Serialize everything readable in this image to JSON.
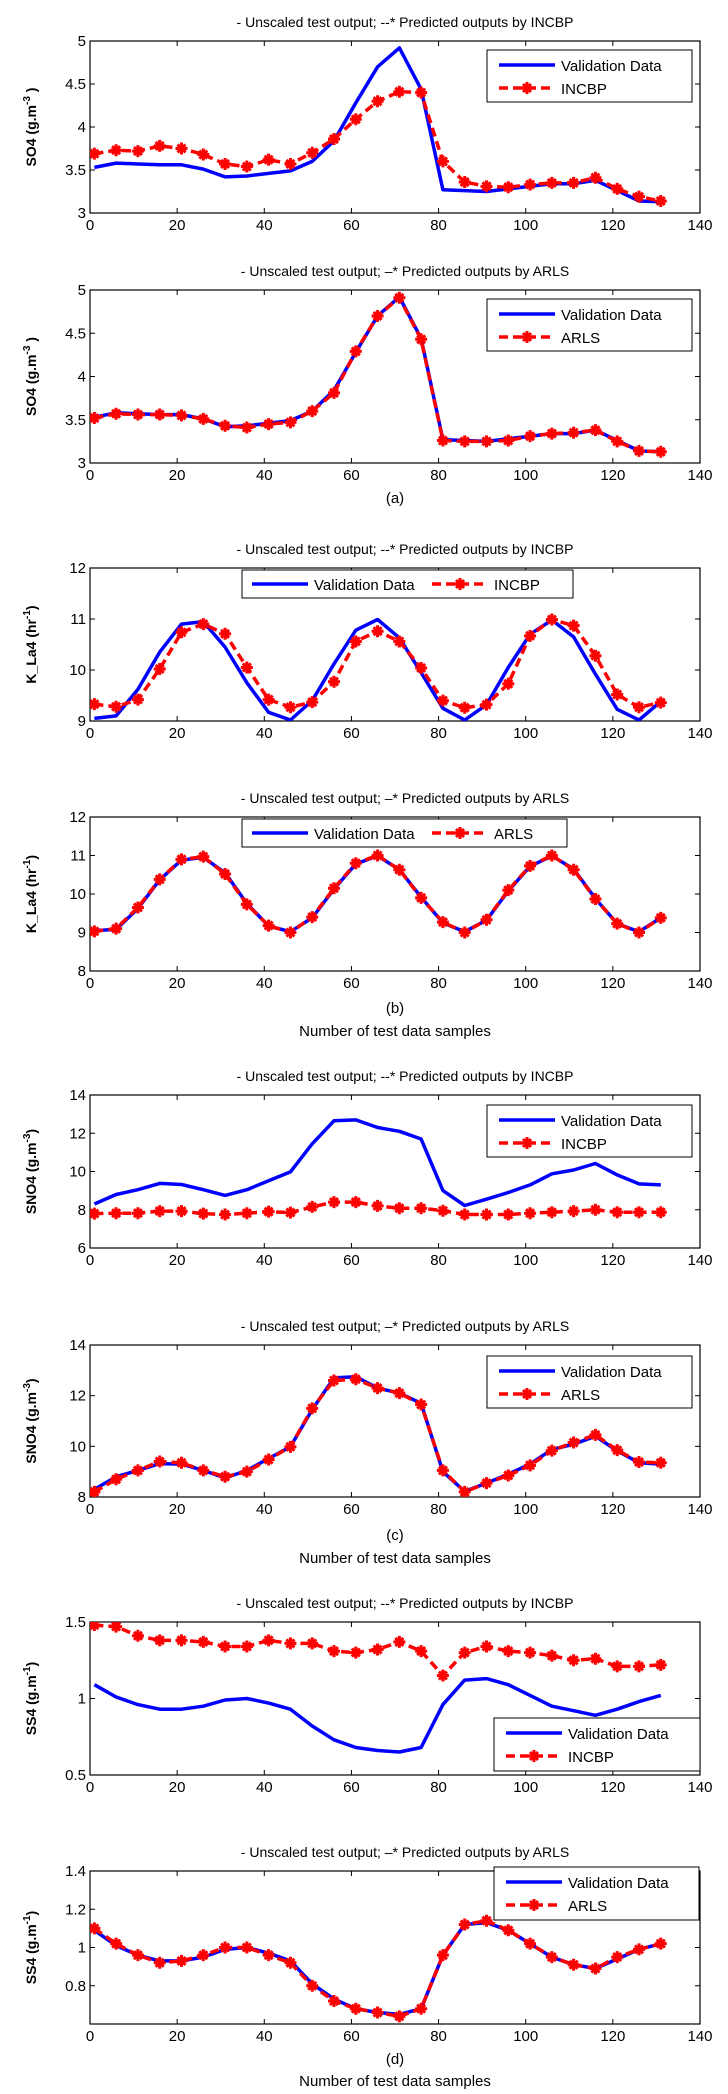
{
  "figure": {
    "panel_labels": [
      "(a)",
      "(b)",
      "(c)",
      "(d)"
    ],
    "xlabel": "Number of test data samples"
  },
  "chart_data": [
    {
      "type": "line",
      "panel": "(a)",
      "title": "- Unscaled test output; --* Predicted outputs by INCBP",
      "ylabel": "SO4 (g.m^-3 )",
      "xlabel": "",
      "xlim": [
        0,
        140
      ],
      "ylim": [
        3,
        5
      ],
      "xticks": [
        0,
        20,
        40,
        60,
        80,
        100,
        120,
        140
      ],
      "yticks": [
        3,
        3.5,
        4,
        4.5,
        5
      ],
      "ytick_labels": [
        "3",
        "3.5",
        "4",
        "4.5",
        "5"
      ],
      "legend": "top-right",
      "legend_layout": "vertical",
      "x": [
        1,
        6,
        11,
        16,
        21,
        26,
        31,
        36,
        41,
        46,
        51,
        56,
        61,
        66,
        71,
        76,
        81,
        86,
        91,
        96,
        101,
        106,
        111,
        116,
        121,
        126,
        131
      ],
      "series": [
        {
          "name": "Validation Data",
          "style": "solid",
          "color": "#0000ff",
          "values": [
            3.53,
            3.58,
            3.57,
            3.56,
            3.56,
            3.51,
            3.42,
            3.43,
            3.46,
            3.49,
            3.6,
            3.84,
            4.28,
            4.7,
            4.92,
            4.44,
            3.27,
            3.26,
            3.25,
            3.28,
            3.31,
            3.34,
            3.34,
            3.38,
            3.26,
            3.14,
            3.13
          ]
        },
        {
          "name": "INCBP",
          "style": "dashed-star",
          "color": "#ff0000",
          "values": [
            3.69,
            3.73,
            3.72,
            3.78,
            3.75,
            3.68,
            3.57,
            3.54,
            3.62,
            3.57,
            3.7,
            3.86,
            4.09,
            4.3,
            4.41,
            4.4,
            3.6,
            3.36,
            3.31,
            3.3,
            3.33,
            3.35,
            3.35,
            3.41,
            3.28,
            3.19,
            3.14
          ]
        }
      ]
    },
    {
      "type": "line",
      "panel": "(a)",
      "title": "- Unscaled test output; –* Predicted outputs by ARLS",
      "ylabel": "SO4 (g.m^-3 )",
      "xlabel": "",
      "xlim": [
        0,
        140
      ],
      "ylim": [
        3,
        5
      ],
      "xticks": [
        0,
        20,
        40,
        60,
        80,
        100,
        120,
        140
      ],
      "yticks": [
        3,
        3.5,
        4,
        4.5,
        5
      ],
      "ytick_labels": [
        "3",
        "3.5",
        "4",
        "4.5",
        "5"
      ],
      "legend": "top-right",
      "legend_layout": "vertical",
      "x": [
        1,
        6,
        11,
        16,
        21,
        26,
        31,
        36,
        41,
        46,
        51,
        56,
        61,
        66,
        71,
        76,
        81,
        86,
        91,
        96,
        101,
        106,
        111,
        116,
        121,
        126,
        131
      ],
      "series": [
        {
          "name": "Validation Data",
          "style": "solid",
          "color": "#0000ff",
          "values": [
            3.53,
            3.58,
            3.57,
            3.56,
            3.56,
            3.51,
            3.42,
            3.43,
            3.46,
            3.49,
            3.6,
            3.84,
            4.28,
            4.7,
            4.92,
            4.44,
            3.27,
            3.26,
            3.25,
            3.28,
            3.31,
            3.34,
            3.34,
            3.38,
            3.26,
            3.14,
            3.13
          ]
        },
        {
          "name": "ARLS",
          "style": "dashed-star",
          "color": "#ff0000",
          "values": [
            3.52,
            3.57,
            3.56,
            3.56,
            3.55,
            3.51,
            3.43,
            3.41,
            3.45,
            3.47,
            3.6,
            3.81,
            4.29,
            4.7,
            4.91,
            4.43,
            3.26,
            3.25,
            3.25,
            3.26,
            3.31,
            3.34,
            3.35,
            3.38,
            3.25,
            3.14,
            3.13
          ]
        }
      ]
    },
    {
      "type": "line",
      "panel": "(b)",
      "title": "- Unscaled test output; --* Predicted outputs by INCBP",
      "ylabel": "K_La4 (hr^-1)",
      "xlabel": "",
      "xlim": [
        0,
        140
      ],
      "ylim": [
        9,
        12
      ],
      "xticks": [
        0,
        20,
        40,
        60,
        80,
        100,
        120,
        140
      ],
      "yticks": [
        9,
        10,
        11,
        12
      ],
      "ytick_labels": [
        "9",
        "10",
        "11",
        "12"
      ],
      "legend": "top-center",
      "legend_layout": "horizontal",
      "x": [
        1,
        6,
        11,
        16,
        21,
        26,
        31,
        36,
        41,
        46,
        51,
        56,
        61,
        66,
        71,
        76,
        81,
        86,
        91,
        96,
        101,
        106,
        111,
        116,
        121,
        126,
        131
      ],
      "series": [
        {
          "name": "Validation Data",
          "style": "solid",
          "color": "#0000ff",
          "values": [
            9.05,
            9.1,
            9.62,
            10.35,
            10.9,
            10.95,
            10.45,
            9.75,
            9.17,
            9.02,
            9.4,
            10.12,
            10.78,
            10.99,
            10.63,
            9.95,
            9.25,
            9.02,
            9.32,
            10.05,
            10.7,
            10.98,
            10.65,
            9.92,
            9.23,
            9.02,
            9.38
          ]
        },
        {
          "name": "INCBP",
          "style": "dashed-star",
          "color": "#ff0000",
          "values": [
            9.33,
            9.28,
            9.42,
            10.02,
            10.74,
            10.9,
            10.71,
            10.05,
            9.42,
            9.27,
            9.37,
            9.77,
            10.56,
            10.76,
            10.56,
            10.04,
            9.4,
            9.26,
            9.32,
            9.73,
            10.67,
            10.99,
            10.87,
            10.28,
            9.52,
            9.27,
            9.36
          ]
        }
      ]
    },
    {
      "type": "line",
      "panel": "(b)",
      "title": "- Unscaled test output; –* Predicted outputs by ARLS",
      "ylabel": "K_La4 (hr^-1)",
      "xlabel": "Number of test data samples",
      "xlim": [
        0,
        140
      ],
      "ylim": [
        8,
        12
      ],
      "xticks": [
        0,
        20,
        40,
        60,
        80,
        100,
        120,
        140
      ],
      "yticks": [
        8,
        9,
        10,
        11,
        12
      ],
      "ytick_labels": [
        "8",
        "9",
        "10",
        "11",
        "12"
      ],
      "legend": "top-center",
      "legend_layout": "horizontal",
      "x": [
        1,
        6,
        11,
        16,
        21,
        26,
        31,
        36,
        41,
        46,
        51,
        56,
        61,
        66,
        71,
        76,
        81,
        86,
        91,
        96,
        101,
        106,
        111,
        116,
        121,
        126,
        131
      ],
      "series": [
        {
          "name": "Validation Data",
          "style": "solid",
          "color": "#0000ff",
          "values": [
            9.05,
            9.08,
            9.62,
            10.37,
            10.88,
            10.95,
            10.55,
            9.75,
            9.17,
            9.02,
            9.38,
            10.13,
            10.78,
            10.99,
            10.63,
            9.92,
            9.25,
            9.02,
            9.32,
            10.08,
            10.72,
            10.99,
            10.65,
            9.88,
            9.23,
            9.02,
            9.38
          ]
        },
        {
          "name": "ARLS",
          "style": "dashed-star",
          "color": "#ff0000",
          "values": [
            9.03,
            9.1,
            9.65,
            10.38,
            10.9,
            10.97,
            10.52,
            9.73,
            9.18,
            9.0,
            9.4,
            10.15,
            10.8,
            11.0,
            10.63,
            9.9,
            9.27,
            9.0,
            9.33,
            10.1,
            10.73,
            11.0,
            10.63,
            9.87,
            9.23,
            9.0,
            9.38
          ]
        }
      ]
    },
    {
      "type": "line",
      "panel": "(c)",
      "title": "- Unscaled test output; --* Predicted outputs by INCBP",
      "ylabel": "SNO4 (g.m^-3)",
      "xlabel": "",
      "xlim": [
        0,
        140
      ],
      "ylim": [
        6,
        14
      ],
      "xticks": [
        0,
        20,
        40,
        60,
        80,
        100,
        120,
        140
      ],
      "yticks": [
        6,
        8,
        10,
        12,
        14
      ],
      "ytick_labels": [
        "6",
        "8",
        "10",
        "12",
        "14"
      ],
      "legend": "top-right",
      "legend_layout": "vertical",
      "x": [
        1,
        6,
        11,
        16,
        21,
        26,
        31,
        36,
        41,
        46,
        51,
        56,
        61,
        66,
        71,
        76,
        81,
        86,
        91,
        96,
        101,
        106,
        111,
        116,
        121,
        126,
        131
      ],
      "series": [
        {
          "name": "Validation Data",
          "style": "solid",
          "color": "#0000ff",
          "values": [
            8.3,
            8.8,
            9.05,
            9.38,
            9.32,
            9.05,
            8.75,
            9.05,
            9.52,
            9.98,
            11.45,
            12.65,
            12.7,
            12.3,
            12.1,
            11.7,
            9.0,
            8.22,
            8.55,
            8.9,
            9.3,
            9.88,
            10.08,
            10.42,
            9.82,
            9.35,
            9.3
          ]
        },
        {
          "name": "INCBP",
          "style": "dashed-star",
          "color": "#ff0000",
          "values": [
            7.8,
            7.82,
            7.82,
            7.93,
            7.93,
            7.8,
            7.75,
            7.82,
            7.9,
            7.85,
            8.15,
            8.4,
            8.4,
            8.2,
            8.08,
            8.08,
            7.95,
            7.75,
            7.75,
            7.75,
            7.82,
            7.87,
            7.93,
            8.0,
            7.87,
            7.87,
            7.87
          ]
        }
      ]
    },
    {
      "type": "line",
      "panel": "(c)",
      "title": "- Unscaled test output; –* Predicted outputs by ARLS",
      "ylabel": "SNO4 (g.m^-3)",
      "xlabel": "Number of test data samples",
      "xlim": [
        0,
        140
      ],
      "ylim": [
        8,
        14
      ],
      "xticks": [
        0,
        20,
        40,
        60,
        80,
        100,
        120,
        140
      ],
      "yticks": [
        8,
        10,
        12,
        14
      ],
      "ytick_labels": [
        "8",
        "10",
        "12",
        "14"
      ],
      "legend": "top-right",
      "legend_layout": "vertical",
      "x": [
        1,
        6,
        11,
        16,
        21,
        26,
        31,
        36,
        41,
        46,
        51,
        56,
        61,
        66,
        71,
        76,
        81,
        86,
        91,
        96,
        101,
        106,
        111,
        116,
        121,
        126,
        131
      ],
      "series": [
        {
          "name": "Validation Data",
          "style": "solid",
          "color": "#0000ff",
          "values": [
            8.3,
            8.8,
            9.05,
            9.32,
            9.3,
            9.05,
            8.75,
            9.05,
            9.52,
            9.98,
            11.45,
            12.7,
            12.75,
            12.3,
            12.1,
            11.7,
            9.0,
            8.22,
            8.55,
            8.9,
            9.3,
            9.88,
            10.08,
            10.4,
            9.82,
            9.35,
            9.3
          ]
        },
        {
          "name": "ARLS",
          "style": "dashed-star",
          "color": "#ff0000",
          "values": [
            8.2,
            8.7,
            9.05,
            9.4,
            9.35,
            9.05,
            8.8,
            9.0,
            9.48,
            9.98,
            11.5,
            12.6,
            12.65,
            12.3,
            12.1,
            11.65,
            9.05,
            8.2,
            8.55,
            8.85,
            9.25,
            9.83,
            10.15,
            10.45,
            9.85,
            9.38,
            9.35
          ]
        }
      ]
    },
    {
      "type": "line",
      "panel": "(d)",
      "title": "- Unscaled test output; --* Predicted outputs by INCBP",
      "ylabel": "SS4 (g.m^-1)",
      "xlabel": "",
      "xlim": [
        0,
        140
      ],
      "ylim": [
        0.5,
        1.5
      ],
      "xticks": [
        0,
        20,
        40,
        60,
        80,
        100,
        120,
        140
      ],
      "yticks": [
        0.5,
        1,
        1.5
      ],
      "ytick_labels": [
        "0.5",
        "1",
        "1.5"
      ],
      "legend": "bottom-right",
      "legend_layout": "vertical",
      "x": [
        1,
        6,
        11,
        16,
        21,
        26,
        31,
        36,
        41,
        46,
        51,
        56,
        61,
        66,
        71,
        76,
        81,
        86,
        91,
        96,
        101,
        106,
        111,
        116,
        121,
        126,
        131
      ],
      "series": [
        {
          "name": "Validation Data",
          "style": "solid",
          "color": "#0000ff",
          "values": [
            1.09,
            1.01,
            0.96,
            0.93,
            0.93,
            0.95,
            0.99,
            1.0,
            0.97,
            0.93,
            0.82,
            0.73,
            0.68,
            0.66,
            0.65,
            0.68,
            0.96,
            1.12,
            1.13,
            1.09,
            1.02,
            0.95,
            0.92,
            0.89,
            0.93,
            0.98,
            1.02
          ]
        },
        {
          "name": "INCBP",
          "style": "dashed-star",
          "color": "#ff0000",
          "values": [
            1.48,
            1.47,
            1.41,
            1.38,
            1.38,
            1.37,
            1.34,
            1.34,
            1.38,
            1.36,
            1.36,
            1.31,
            1.3,
            1.32,
            1.37,
            1.31,
            1.15,
            1.3,
            1.34,
            1.31,
            1.3,
            1.28,
            1.25,
            1.26,
            1.21,
            1.21,
            1.22
          ]
        }
      ]
    },
    {
      "type": "line",
      "panel": "(d)",
      "title": "- Unscaled test output; –* Predicted outputs by ARLS",
      "ylabel": "SS4 (g.m^-1)",
      "xlabel": "Number of test data samples",
      "xlim": [
        0,
        140
      ],
      "ylim": [
        0.6,
        1.4
      ],
      "xticks": [
        0,
        20,
        40,
        60,
        80,
        100,
        120,
        140
      ],
      "yticks": [
        0.8,
        1,
        1.2,
        1.4
      ],
      "ytick_labels": [
        "0.8",
        "1",
        "1.2",
        "1.4"
      ],
      "legend": "top-right",
      "legend_layout": "vertical",
      "x": [
        1,
        6,
        11,
        16,
        21,
        26,
        31,
        36,
        41,
        46,
        51,
        56,
        61,
        66,
        71,
        76,
        81,
        86,
        91,
        96,
        101,
        106,
        111,
        116,
        121,
        126,
        131
      ],
      "series": [
        {
          "name": "Validation Data",
          "style": "solid",
          "color": "#0000ff",
          "values": [
            1.09,
            1.01,
            0.96,
            0.93,
            0.93,
            0.95,
            0.99,
            1.0,
            0.97,
            0.93,
            0.81,
            0.73,
            0.68,
            0.66,
            0.65,
            0.68,
            0.96,
            1.12,
            1.13,
            1.09,
            1.02,
            0.95,
            0.91,
            0.89,
            0.94,
            0.99,
            1.02
          ]
        },
        {
          "name": "ARLS",
          "style": "dashed-star",
          "color": "#ff0000",
          "values": [
            1.1,
            1.02,
            0.96,
            0.92,
            0.93,
            0.96,
            1.0,
            1.0,
            0.96,
            0.92,
            0.8,
            0.72,
            0.68,
            0.66,
            0.64,
            0.68,
            0.96,
            1.12,
            1.14,
            1.09,
            1.02,
            0.95,
            0.91,
            0.89,
            0.95,
            0.99,
            1.02
          ]
        }
      ]
    }
  ]
}
